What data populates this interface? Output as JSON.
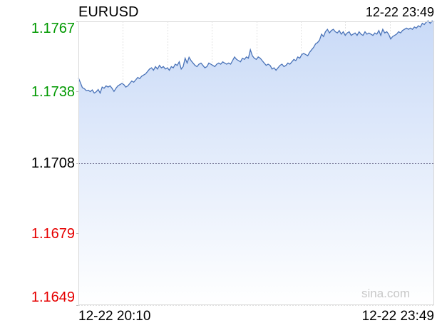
{
  "chart_data": {
    "type": "area",
    "title": "EURUSD",
    "timestamp": "12-22 23:49",
    "x_start_label": "12-22 20:10",
    "x_end_label": "12-22 23:49",
    "watermark": "sina.com",
    "y_ticks": [
      {
        "value": 1.1767,
        "label": "1.1767",
        "color": "#009900"
      },
      {
        "value": 1.1738,
        "label": "1.1738",
        "color": "#009900"
      },
      {
        "value": 1.1708,
        "label": "1.1708",
        "color": "#000000"
      },
      {
        "value": 1.1679,
        "label": "1.1679",
        "color": "#e60000"
      },
      {
        "value": 1.1649,
        "label": "1.1649",
        "color": "#e60000"
      }
    ],
    "ylim": [
      1.1649,
      1.1767
    ],
    "reference_value": 1.1708,
    "grid": true,
    "line_color": "#4a73b8",
    "fill_color_top": "#c9daf7",
    "fill_color_bottom": "#ffffff",
    "values": [
      1.17435,
      1.17415,
      1.17395,
      1.1739,
      1.17382,
      1.17384,
      1.17378,
      1.17385,
      1.17372,
      1.17377,
      1.17387,
      1.17372,
      1.17397,
      1.17392,
      1.17402,
      1.17397,
      1.17402,
      1.17392,
      1.17379,
      1.17392,
      1.17402,
      1.17407,
      1.17412,
      1.17407,
      1.17397,
      1.17402,
      1.17412,
      1.17422,
      1.17417,
      1.17427,
      1.17437,
      1.17432,
      1.17442,
      1.17447,
      1.17452,
      1.17462,
      1.17472,
      1.17477,
      1.17467,
      1.17482,
      1.17472,
      1.17487,
      1.17477,
      1.17482,
      1.17472,
      1.17477,
      1.17467,
      1.17482,
      1.17477,
      1.17492,
      1.17487,
      1.17502,
      1.17472,
      1.17482,
      1.17517,
      1.17497,
      1.17521,
      1.17507,
      1.17497,
      1.17487,
      1.17482,
      1.17492,
      1.17497,
      1.17487,
      1.17477,
      1.17482,
      1.17497,
      1.17492,
      1.17487,
      1.17482,
      1.17492,
      1.17497,
      1.17492,
      1.17502,
      1.17497,
      1.17492,
      1.17497,
      1.17492,
      1.17507,
      1.17522,
      1.17512,
      1.17507,
      1.17502,
      1.17517,
      1.17512,
      1.17522,
      1.17517,
      1.17552,
      1.17527,
      1.17517,
      1.17512,
      1.17522,
      1.17517,
      1.17507,
      1.17497,
      1.17487,
      1.17492,
      1.17487,
      1.17472,
      1.17477,
      1.17467,
      1.17477,
      1.17487,
      1.17492,
      1.17482,
      1.17487,
      1.17497,
      1.17492,
      1.17502,
      1.17512,
      1.17507,
      1.17522,
      1.17517,
      1.17532,
      1.17537,
      1.17532,
      1.17527,
      1.17542,
      1.17552,
      1.17562,
      1.17577,
      1.17582,
      1.17592,
      1.17617,
      1.17607,
      1.17627,
      1.17637,
      1.17622,
      1.17632,
      1.17637,
      1.17627,
      1.17622,
      1.17632,
      1.17617,
      1.17627,
      1.17612,
      1.17622,
      1.17627,
      1.17612,
      1.17617,
      1.17622,
      1.17612,
      1.17627,
      1.17617,
      1.17612,
      1.17627,
      1.17617,
      1.17622,
      1.17617,
      1.17612,
      1.17622,
      1.17617,
      1.17632,
      1.17612,
      1.17637,
      1.17622,
      1.17627,
      1.17617,
      1.17597,
      1.17607,
      1.17612,
      1.17617,
      1.17627,
      1.17622,
      1.17632,
      1.17637,
      1.17642,
      1.17637,
      1.17642,
      1.17637,
      1.17647,
      1.17642,
      1.17652,
      1.17647,
      1.17662,
      1.17657,
      1.17667,
      1.17672,
      1.17662,
      1.17672,
      1.17667
    ]
  }
}
